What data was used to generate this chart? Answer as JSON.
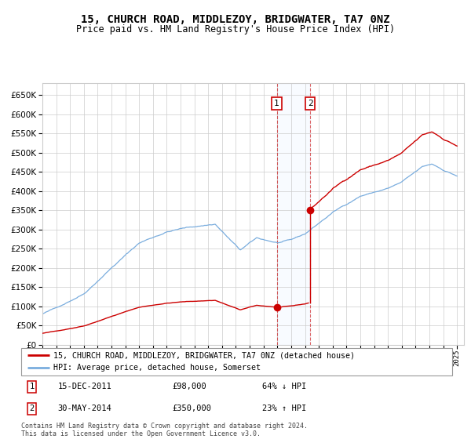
{
  "title": "15, CHURCH ROAD, MIDDLEZOY, BRIDGWATER, TA7 0NZ",
  "subtitle": "Price paid vs. HM Land Registry's House Price Index (HPI)",
  "legend_line1": "15, CHURCH ROAD, MIDDLEZOY, BRIDGWATER, TA7 0NZ (detached house)",
  "legend_line2": "HPI: Average price, detached house, Somerset",
  "transaction1_date": "15-DEC-2011",
  "transaction1_price": 98000,
  "transaction1_pct": "64% ↓ HPI",
  "transaction2_date": "30-MAY-2014",
  "transaction2_price": 350000,
  "transaction2_pct": "23% ↑ HPI",
  "footer": "Contains HM Land Registry data © Crown copyright and database right 2024.\nThis data is licensed under the Open Government Licence v3.0.",
  "hpi_color": "#7aadde",
  "price_color": "#cc0000",
  "shade_color": "#ddeeff",
  "grid_color": "#cccccc",
  "background_color": "#ffffff",
  "ylim_max": 680000,
  "ytick_step": 50000,
  "xlim_min": 1995,
  "xlim_max": 2025.5
}
